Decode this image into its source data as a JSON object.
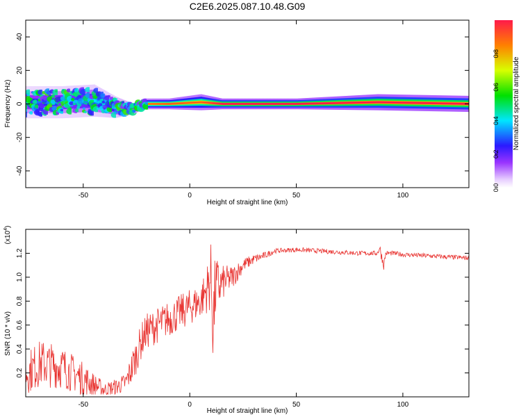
{
  "figure_title": "C2E6.2025.087.10.48.G09",
  "chart_data": [
    {
      "type": "heatmap",
      "panel": "spectrogram",
      "xlabel": "Height of straight line (km)",
      "ylabel": "Frequency (Hz)",
      "xlim": [
        -77,
        131
      ],
      "ylim": [
        -50,
        50
      ],
      "xticks": [
        -50,
        0,
        50,
        100
      ],
      "yticks": [
        -40,
        -20,
        0,
        20,
        40
      ],
      "colorbar": {
        "label": "Normalized spectral amplitude",
        "range": [
          0,
          1
        ],
        "ticks": [
          "0.0",
          "0.2",
          "0.4",
          "0.6",
          "0.8"
        ],
        "tick_values": [
          0.0,
          0.2,
          0.4,
          0.6,
          0.8
        ]
      },
      "ridge": [
        {
          "x": -77,
          "freq": 1,
          "amplitude": 0.3,
          "spread": 6
        },
        {
          "x": -60,
          "freq": 1,
          "amplitude": 0.35,
          "spread": 6
        },
        {
          "x": -45,
          "freq": 2,
          "amplitude": 0.4,
          "spread": 6
        },
        {
          "x": -35,
          "freq": -2,
          "amplitude": 0.45,
          "spread": 4
        },
        {
          "x": -27,
          "freq": -3,
          "amplitude": 0.7,
          "spread": 2
        },
        {
          "x": -22,
          "freq": 0,
          "amplitude": 0.85,
          "spread": 2
        },
        {
          "x": -10,
          "freq": 0,
          "amplitude": 0.9,
          "spread": 2
        },
        {
          "x": 5,
          "freq": 1,
          "amplitude": 0.9,
          "spread": 3
        },
        {
          "x": 15,
          "freq": 0,
          "amplitude": 1.0,
          "spread": 2
        },
        {
          "x": 50,
          "freq": 0,
          "amplitude": 1.0,
          "spread": 2
        },
        {
          "x": 88,
          "freq": 1,
          "amplitude": 1.0,
          "spread": 3
        },
        {
          "x": 131,
          "freq": 0,
          "amplitude": 1.0,
          "spread": 3
        }
      ]
    },
    {
      "type": "line",
      "panel": "snr",
      "xlabel": "Height of straight line (km)",
      "ylabel": "SNR (10 * v/v)",
      "y_multiplier_label": "(x10",
      "y_multiplier_exp": "4",
      "xlim": [
        -77,
        131
      ],
      "ylim": [
        0.0,
        1.4
      ],
      "xticks": [
        -50,
        0,
        50,
        100
      ],
      "yticks": [
        "0.2",
        "0.4",
        "0.6",
        "0.8",
        "1.0",
        "1.2"
      ],
      "ytick_values": [
        0.2,
        0.4,
        0.6,
        0.8,
        1.0,
        1.2
      ],
      "color": "#e8312e",
      "series": [
        {
          "x": [
            -77,
            -70,
            -60,
            -50,
            -45,
            -40,
            -35,
            -30,
            -27,
            -25,
            -22,
            -20,
            -15,
            -10,
            -5,
            0,
            5,
            8,
            10,
            11,
            12,
            15,
            20,
            25,
            30,
            35,
            40,
            50,
            60,
            70,
            80,
            88,
            89,
            90,
            91,
            92,
            95,
            100,
            110,
            120,
            131
          ],
          "y": [
            0.2,
            0.28,
            0.25,
            0.15,
            0.1,
            0.06,
            0.08,
            0.12,
            0.25,
            0.35,
            0.5,
            0.55,
            0.6,
            0.65,
            0.7,
            0.75,
            0.8,
            0.9,
            1.0,
            0.6,
            0.9,
            0.95,
            1.0,
            1.1,
            1.15,
            1.18,
            1.22,
            1.23,
            1.22,
            1.21,
            1.2,
            1.2,
            1.25,
            1.18,
            1.1,
            1.2,
            1.2,
            1.19,
            1.18,
            1.17,
            1.16
          ],
          "noise_amplitude": [
            0.18,
            0.2,
            0.18,
            0.14,
            0.1,
            0.06,
            0.07,
            0.08,
            0.15,
            0.15,
            0.15,
            0.15,
            0.15,
            0.15,
            0.15,
            0.15,
            0.15,
            0.2,
            0.3,
            0.4,
            0.3,
            0.15,
            0.1,
            0.06,
            0.04,
            0.03,
            0.02,
            0.02,
            0.02,
            0.02,
            0.02,
            0.02,
            0.05,
            0.04,
            0.04,
            0.02,
            0.02,
            0.02,
            0.02,
            0.02,
            0.02
          ]
        }
      ]
    }
  ]
}
